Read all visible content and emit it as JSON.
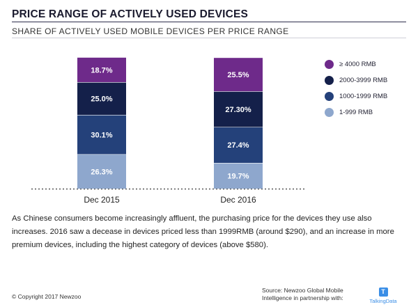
{
  "header": {
    "title": "PRICE RANGE OF ACTIVELY USED DEVICES",
    "subtitle": "SHARE OF ACTIVELY USED MOBILE DEVICES PER PRICE RANGE"
  },
  "chart_data": {
    "type": "bar",
    "stacked": true,
    "categories": [
      "Dec 2015",
      "Dec 2016"
    ],
    "series": [
      {
        "name": "1-999 RMB",
        "color": "#8ea7cd",
        "values": [
          26.3,
          19.7
        ],
        "labels": [
          "26.3%",
          "19.7%"
        ]
      },
      {
        "name": "1000-1999 RMB",
        "color": "#24417a",
        "values": [
          30.1,
          27.4
        ],
        "labels": [
          "30.1%",
          "27.4%"
        ]
      },
      {
        "name": "2000-3999 RMB",
        "color": "#14204a",
        "values": [
          25.0,
          27.3
        ],
        "labels": [
          "25.0%",
          "27.30%"
        ]
      },
      {
        "name": "≥ 4000 RMB",
        "color": "#6e2a8a",
        "values": [
          18.7,
          25.5
        ],
        "labels": [
          "18.7%",
          "25.5%"
        ]
      }
    ],
    "ylim": [
      0,
      100
    ],
    "grid": false,
    "legend_position": "right",
    "baseline_style": "dotted"
  },
  "legend": {
    "items": [
      {
        "label": "≥ 4000 RMB",
        "color": "#6e2a8a"
      },
      {
        "label": "2000-3999 RMB",
        "color": "#14204a"
      },
      {
        "label": "1000-1999 RMB",
        "color": "#24417a"
      },
      {
        "label": "1-999 RMB",
        "color": "#8ea7cd"
      }
    ]
  },
  "body": {
    "text": "As Chinese consumers become increasingly affluent, the purchasing price for the devices they use also increases. 2016 saw a decease in devices priced less than 1999RMB (around $290), and an increase in more premium devices, including the highest category of devices (above $580)."
  },
  "footer": {
    "copyright": "© Copyright 2017 Newzoo",
    "source_line1": "Source: Newzoo Global Mobile",
    "source_line2": "Intelligence in partnership with:",
    "logo_name": "TalkingData",
    "logo_letter": "T"
  }
}
